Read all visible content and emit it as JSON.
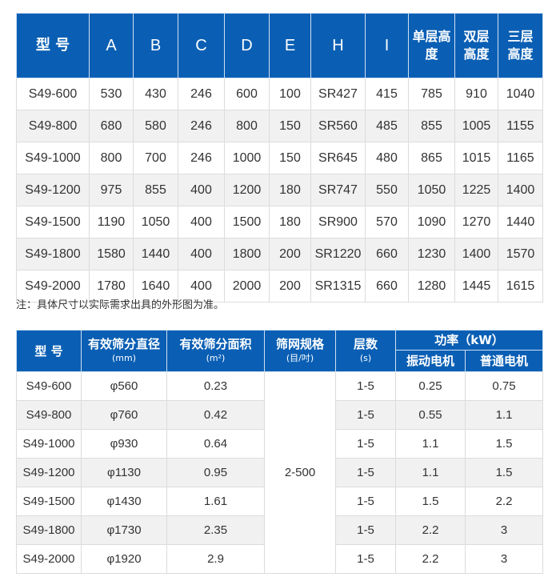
{
  "colors": {
    "header_bg": "#0a5fb4",
    "alt_row": "#f1f1f1"
  },
  "table1": {
    "headers": [
      "型 号",
      "A",
      "B",
      "C",
      "D",
      "E",
      "H",
      "I",
      "单层高度",
      "双层高度",
      "三层高度"
    ],
    "rows": [
      [
        "S49-600",
        "530",
        "430",
        "246",
        "600",
        "100",
        "SR427",
        "415",
        "785",
        "910",
        "1040"
      ],
      [
        "S49-800",
        "680",
        "580",
        "246",
        "800",
        "150",
        "SR560",
        "485",
        "855",
        "1005",
        "1155"
      ],
      [
        "S49-1000",
        "800",
        "700",
        "246",
        "1000",
        "150",
        "SR645",
        "480",
        "865",
        "1015",
        "1165"
      ],
      [
        "S49-1200",
        "975",
        "855",
        "400",
        "1200",
        "180",
        "SR747",
        "550",
        "1050",
        "1225",
        "1400"
      ],
      [
        "S49-1500",
        "1190",
        "1050",
        "400",
        "1500",
        "180",
        "SR900",
        "570",
        "1090",
        "1270",
        "1440"
      ],
      [
        "S49-1800",
        "1580",
        "1440",
        "400",
        "1800",
        "200",
        "SR1220",
        "660",
        "1230",
        "1400",
        "1570"
      ],
      [
        "S49-2000",
        "1780",
        "1640",
        "400",
        "2000",
        "200",
        "SR1315",
        "660",
        "1280",
        "1445",
        "1615"
      ]
    ]
  },
  "note": "注：具体尺寸以实际需求出具的外形图为准。",
  "table2": {
    "headers": {
      "model": "型 号",
      "diameter": "有效筛分直径",
      "diameter_unit": "(mm)",
      "area": "有效筛分面积",
      "area_unit": "(m²)",
      "mesh": "筛网规格",
      "mesh_unit": "(目/吋)",
      "layers": "层数",
      "layers_unit": "(s)",
      "power": "功率（kW）",
      "vib_motor": "振动电机",
      "std_motor": "普通电机"
    },
    "mesh_value": "2-500",
    "rows": [
      {
        "model": "S49-600",
        "diameter": "φ560",
        "area": "0.23",
        "layers": "1-5",
        "vib": "0.25",
        "std": "0.75"
      },
      {
        "model": "S49-800",
        "diameter": "φ760",
        "area": "0.42",
        "layers": "1-5",
        "vib": "0.55",
        "std": "1.1"
      },
      {
        "model": "S49-1000",
        "diameter": "φ930",
        "area": "0.64",
        "layers": "1-5",
        "vib": "1.1",
        "std": "1.5"
      },
      {
        "model": "S49-1200",
        "diameter": "φ1130",
        "area": "0.95",
        "layers": "1-5",
        "vib": "1.1",
        "std": "1.5"
      },
      {
        "model": "S49-1500",
        "diameter": "φ1430",
        "area": "1.61",
        "layers": "1-5",
        "vib": "1.5",
        "std": "2.2"
      },
      {
        "model": "S49-1800",
        "diameter": "φ1730",
        "area": "2.35",
        "layers": "1-5",
        "vib": "2.2",
        "std": "3"
      },
      {
        "model": "S49-2000",
        "diameter": "φ1920",
        "area": "2.9",
        "layers": "1-5",
        "vib": "2.2",
        "std": "3"
      }
    ]
  }
}
